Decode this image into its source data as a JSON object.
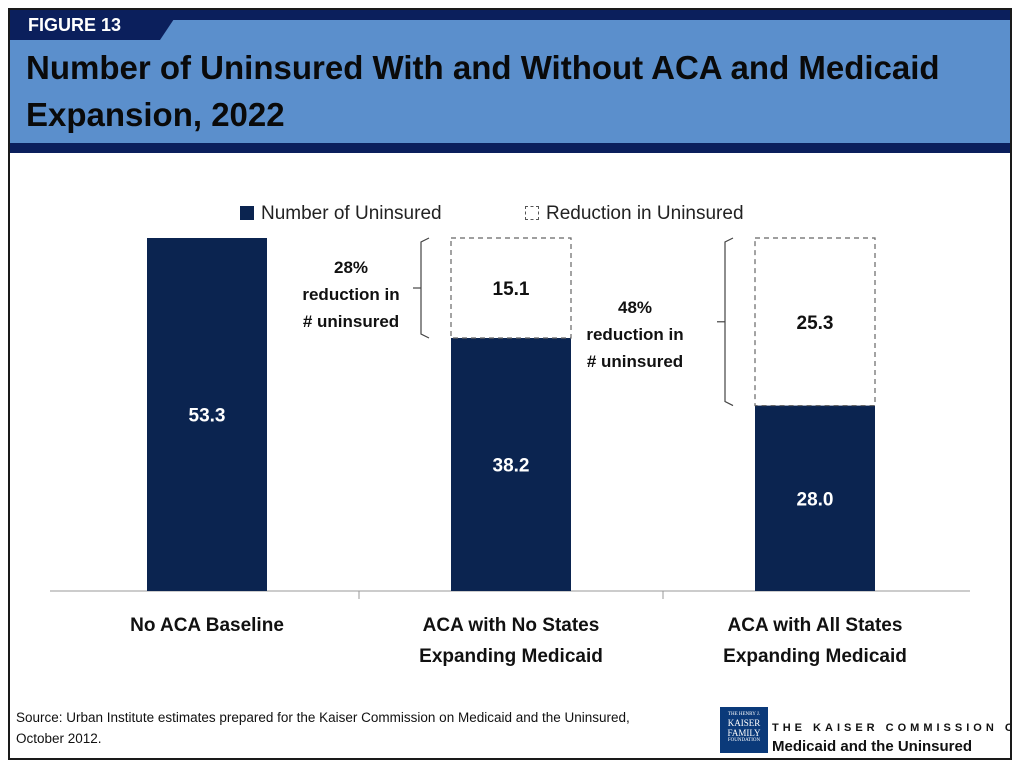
{
  "figure_label": "FIGURE 13",
  "title": "Number of Uninsured With and Without ACA and Medicaid Expansion, 2022",
  "chart_data": {
    "type": "bar",
    "stacked": true,
    "title": "Number of Uninsured With and Without ACA and Medicaid Expansion, 2022",
    "categories": [
      "No ACA Baseline",
      "ACA with No States Expanding Medicaid",
      "ACA with All States Expanding Medicaid"
    ],
    "series": [
      {
        "name": "Number of Uninsured",
        "values": [
          53.3,
          38.2,
          28.0
        ],
        "labels": [
          "53.3",
          "38.2",
          "28.0"
        ],
        "color": "#0b2450"
      },
      {
        "name": "Reduction in Uninsured",
        "values": [
          0,
          15.1,
          25.3
        ],
        "labels": [
          "",
          "15.1",
          "25.3"
        ],
        "color": "#ffffff",
        "style": "dashed-outline"
      }
    ],
    "ylim": [
      0,
      53.3
    ],
    "grid": false,
    "legend_placement": "top-center",
    "annotations": [
      {
        "category": "ACA with No States Expanding Medicaid",
        "lines": [
          "28%",
          "reduction in",
          "# uninsured"
        ]
      },
      {
        "category": "ACA with All States Expanding Medicaid",
        "lines": [
          "48%",
          "reduction in",
          "# uninsured"
        ]
      }
    ]
  },
  "axis": {
    "cat_lines": [
      [
        "No ACA Baseline"
      ],
      [
        "ACA with No States",
        "Expanding Medicaid"
      ],
      [
        "ACA with All States",
        "Expanding Medicaid"
      ]
    ]
  },
  "source": {
    "line1": "Source: Urban Institute estimates prepared for the Kaiser Commission on Medicaid and the Uninsured,",
    "line2": "October 2012."
  },
  "logo": {
    "top_small": "THE HENRY J.",
    "line1": "KAISER",
    "line2": "FAMILY",
    "line3": "FOUNDATION",
    "commission_top": "THE KAISER COMMISSION ON",
    "commission_bottom": "Medicaid and the Uninsured"
  },
  "colors": {
    "header": "#5b8fcc",
    "navy": "#0b1f5c",
    "bar": "#0b2450"
  }
}
